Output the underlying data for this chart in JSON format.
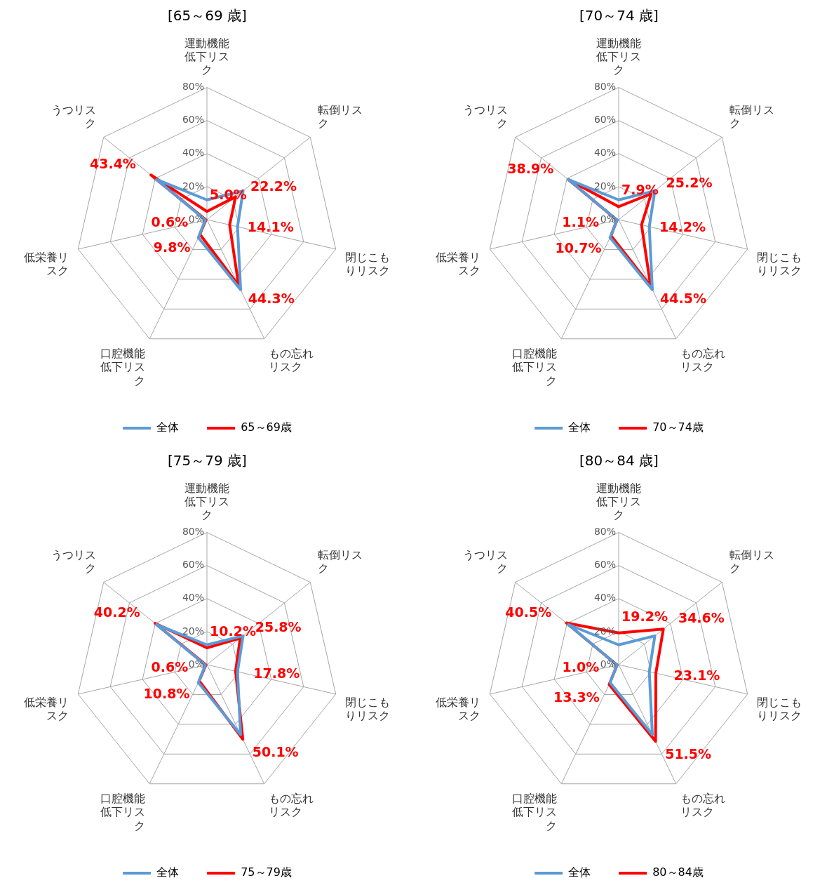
{
  "chart_data": [
    {
      "type": "radar",
      "title": "[65～69 歳]",
      "categories": [
        "運動機能低下リスク",
        "転倒リスク",
        "閉じこもりリスク",
        "もの忘れリスク",
        "口腔機能低下リスク",
        "低栄養リスク",
        "うつリスク"
      ],
      "ylim": [
        0,
        80
      ],
      "yticks": [
        {
          "value": 0,
          "label": "0%"
        },
        {
          "value": 20,
          "label": "20%"
        },
        {
          "value": 40,
          "label": "40%"
        },
        {
          "value": 60,
          "label": "60%"
        },
        {
          "value": 80,
          "label": "80%"
        }
      ],
      "grid": true,
      "legend": "bottom",
      "marker": "none",
      "series": [
        {
          "name": "全体",
          "color": "#5b9bd5",
          "values": [
            12,
            28,
            19,
            47,
            12,
            1,
            39
          ]
        },
        {
          "name": "65～69歳",
          "color": "#ff0000",
          "values": [
            5.0,
            22.2,
            14.1,
            44.3,
            9.8,
            0.6,
            43.4
          ],
          "value_labels": [
            "5.0%",
            "22.2%",
            "14.1%",
            "44.3%",
            "9.8%",
            "0.6%",
            "43.4%"
          ]
        }
      ]
    },
    {
      "type": "radar",
      "title": "[70～74 歳]",
      "categories": [
        "運動機能低下リスク",
        "転倒リスク",
        "閉じこもりリスク",
        "もの忘れリスク",
        "口腔機能低下リスク",
        "低栄養リスク",
        "うつリスク"
      ],
      "ylim": [
        0,
        80
      ],
      "yticks": [
        {
          "value": 0,
          "label": "0%"
        },
        {
          "value": 20,
          "label": "20%"
        },
        {
          "value": 40,
          "label": "40%"
        },
        {
          "value": 60,
          "label": "60%"
        },
        {
          "value": 80,
          "label": "80%"
        }
      ],
      "grid": true,
      "legend": "bottom",
      "marker": "none",
      "series": [
        {
          "name": "全体",
          "color": "#5b9bd5",
          "values": [
            12,
            28,
            19,
            47,
            12,
            1,
            39
          ]
        },
        {
          "name": "70～74歳",
          "color": "#ff0000",
          "values": [
            7.9,
            25.2,
            14.2,
            44.5,
            10.7,
            1.1,
            38.9
          ],
          "value_labels": [
            "7.9%",
            "25.2%",
            "14.2%",
            "44.5%",
            "10.7%",
            "1.1%",
            "38.9%"
          ]
        }
      ]
    },
    {
      "type": "radar",
      "title": "[75～79 歳]",
      "categories": [
        "運動機能低下リスク",
        "転倒リスク",
        "閉じこもりリスク",
        "もの忘れリスク",
        "口腔機能低下リスク",
        "低栄養リスク",
        "うつリスク"
      ],
      "ylim": [
        0,
        80
      ],
      "yticks": [
        {
          "value": 0,
          "label": "0%"
        },
        {
          "value": 20,
          "label": "20%"
        },
        {
          "value": 40,
          "label": "40%"
        },
        {
          "value": 60,
          "label": "60%"
        },
        {
          "value": 80,
          "label": "80%"
        }
      ],
      "grid": true,
      "legend": "bottom",
      "marker": "none",
      "series": [
        {
          "name": "全体",
          "color": "#5b9bd5",
          "values": [
            12,
            28,
            19,
            47,
            12,
            1,
            39
          ]
        },
        {
          "name": "75～79歳",
          "color": "#ff0000",
          "values": [
            10.2,
            25.8,
            17.8,
            50.1,
            10.8,
            0.6,
            40.2
          ],
          "value_labels": [
            "10.2%",
            "25.8%",
            "17.8%",
            "50.1%",
            "10.8%",
            "0.6%",
            "40.2%"
          ]
        }
      ]
    },
    {
      "type": "radar",
      "title": "[80～84 歳]",
      "categories": [
        "運動機能低下リスク",
        "転倒リスク",
        "閉じこもりリスク",
        "もの忘れリスク",
        "口腔機能低下リスク",
        "低栄養リスク",
        "うつリスク"
      ],
      "ylim": [
        0,
        80
      ],
      "yticks": [
        {
          "value": 0,
          "label": "0%"
        },
        {
          "value": 20,
          "label": "20%"
        },
        {
          "value": 40,
          "label": "40%"
        },
        {
          "value": 60,
          "label": "60%"
        },
        {
          "value": 80,
          "label": "80%"
        }
      ],
      "grid": true,
      "legend": "bottom",
      "marker": "none",
      "series": [
        {
          "name": "全体",
          "color": "#5b9bd5",
          "values": [
            12,
            28,
            19,
            47,
            12,
            1,
            39
          ]
        },
        {
          "name": "80～84歳",
          "color": "#ff0000",
          "values": [
            19.2,
            34.6,
            23.1,
            51.5,
            13.3,
            1.0,
            40.5
          ],
          "value_labels": [
            "19.2%",
            "34.6%",
            "23.1%",
            "51.5%",
            "13.3%",
            "1.0%",
            "40.5%"
          ]
        }
      ]
    }
  ]
}
